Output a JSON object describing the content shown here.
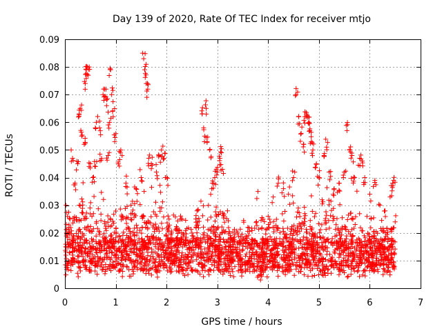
{
  "chart_data": {
    "type": "scatter",
    "title": "Day 139 of 2020, Rate Of TEC Index for receiver mtjo",
    "xlabel": "GPS time / hours",
    "ylabel": "ROTI / TECUs",
    "xlim": [
      0,
      7
    ],
    "ylim": [
      0,
      0.09
    ],
    "grid": true,
    "marker": "+",
    "xticks": [
      "0",
      "1",
      "2",
      "3",
      "4",
      "5",
      "6",
      "7"
    ],
    "yticks": [
      "0",
      "0.01",
      "0.02",
      "0.03",
      "0.04",
      "0.05",
      "0.06",
      "0.07",
      "0.08",
      "0.09"
    ],
    "x_range_of_data": [
      0,
      6.5
    ],
    "series": [
      {
        "name": "ROTI",
        "color": "#ff0000",
        "note": "Dense band mostly between 0.005 and 0.025 TECU/s across 0-6.5 h; representative outliers listed",
        "points": [
          [
            0.02,
            0.03
          ],
          [
            0.05,
            0.026
          ],
          [
            0.08,
            0.022
          ],
          [
            0.1,
            0.025
          ],
          [
            0.15,
            0.047
          ],
          [
            0.2,
            0.038
          ],
          [
            0.25,
            0.045
          ],
          [
            0.28,
            0.063
          ],
          [
            0.3,
            0.065
          ],
          [
            0.33,
            0.055
          ],
          [
            0.38,
            0.052
          ],
          [
            0.4,
            0.074
          ],
          [
            0.42,
            0.079
          ],
          [
            0.44,
            0.08
          ],
          [
            0.46,
            0.077
          ],
          [
            0.5,
            0.045
          ],
          [
            0.55,
            0.04
          ],
          [
            0.6,
            0.044
          ],
          [
            0.62,
            0.06
          ],
          [
            0.68,
            0.058
          ],
          [
            0.72,
            0.047
          ],
          [
            0.75,
            0.07
          ],
          [
            0.78,
            0.072
          ],
          [
            0.82,
            0.066
          ],
          [
            0.85,
            0.048
          ],
          [
            0.88,
            0.06
          ],
          [
            0.9,
            0.079
          ],
          [
            0.92,
            0.07
          ],
          [
            0.95,
            0.062
          ],
          [
            0.98,
            0.053
          ],
          [
            1.05,
            0.045
          ],
          [
            1.1,
            0.05
          ],
          [
            1.2,
            0.038
          ],
          [
            1.3,
            0.03
          ],
          [
            1.4,
            0.036
          ],
          [
            1.5,
            0.04
          ],
          [
            1.55,
            0.083
          ],
          [
            1.57,
            0.079
          ],
          [
            1.6,
            0.074
          ],
          [
            1.63,
            0.072
          ],
          [
            1.65,
            0.047
          ],
          [
            1.7,
            0.045
          ],
          [
            1.8,
            0.042
          ],
          [
            1.85,
            0.048
          ],
          [
            1.9,
            0.05
          ],
          [
            1.95,
            0.047
          ],
          [
            2.0,
            0.04
          ],
          [
            2.05,
            0.025
          ],
          [
            2.1,
            0.02
          ],
          [
            2.2,
            0.018
          ],
          [
            2.5,
            0.02
          ],
          [
            2.6,
            0.028
          ],
          [
            2.7,
            0.063
          ],
          [
            2.75,
            0.055
          ],
          [
            2.78,
            0.065
          ],
          [
            2.8,
            0.053
          ],
          [
            2.85,
            0.05
          ],
          [
            2.9,
            0.038
          ],
          [
            2.95,
            0.04
          ],
          [
            3.0,
            0.042
          ],
          [
            3.05,
            0.047
          ],
          [
            3.08,
            0.049
          ],
          [
            3.1,
            0.043
          ],
          [
            3.2,
            0.028
          ],
          [
            3.4,
            0.02
          ],
          [
            3.6,
            0.022
          ],
          [
            3.8,
            0.035
          ],
          [
            3.85,
            0.003
          ],
          [
            3.9,
            0.025
          ],
          [
            4.0,
            0.026
          ],
          [
            4.1,
            0.033
          ],
          [
            4.2,
            0.038
          ],
          [
            4.3,
            0.036
          ],
          [
            4.4,
            0.034
          ],
          [
            4.5,
            0.04
          ],
          [
            4.55,
            0.07
          ],
          [
            4.6,
            0.062
          ],
          [
            4.65,
            0.056
          ],
          [
            4.7,
            0.052
          ],
          [
            4.72,
            0.062
          ],
          [
            4.75,
            0.063
          ],
          [
            4.78,
            0.062
          ],
          [
            4.8,
            0.06
          ],
          [
            4.82,
            0.057
          ],
          [
            4.85,
            0.053
          ],
          [
            4.88,
            0.05
          ],
          [
            4.95,
            0.045
          ],
          [
            5.0,
            0.04
          ],
          [
            5.1,
            0.048
          ],
          [
            5.15,
            0.051
          ],
          [
            5.2,
            0.042
          ],
          [
            5.3,
            0.036
          ],
          [
            5.4,
            0.038
          ],
          [
            5.5,
            0.042
          ],
          [
            5.55,
            0.057
          ],
          [
            5.6,
            0.05
          ],
          [
            5.65,
            0.048
          ],
          [
            5.7,
            0.04
          ],
          [
            5.8,
            0.047
          ],
          [
            5.85,
            0.046
          ],
          [
            5.9,
            0.04
          ],
          [
            6.0,
            0.034
          ],
          [
            6.1,
            0.039
          ],
          [
            6.2,
            0.03
          ],
          [
            6.3,
            0.028
          ],
          [
            6.4,
            0.033
          ],
          [
            6.45,
            0.038
          ],
          [
            6.47,
            0.039
          ],
          [
            6.5,
            0.024
          ]
        ]
      }
    ]
  }
}
